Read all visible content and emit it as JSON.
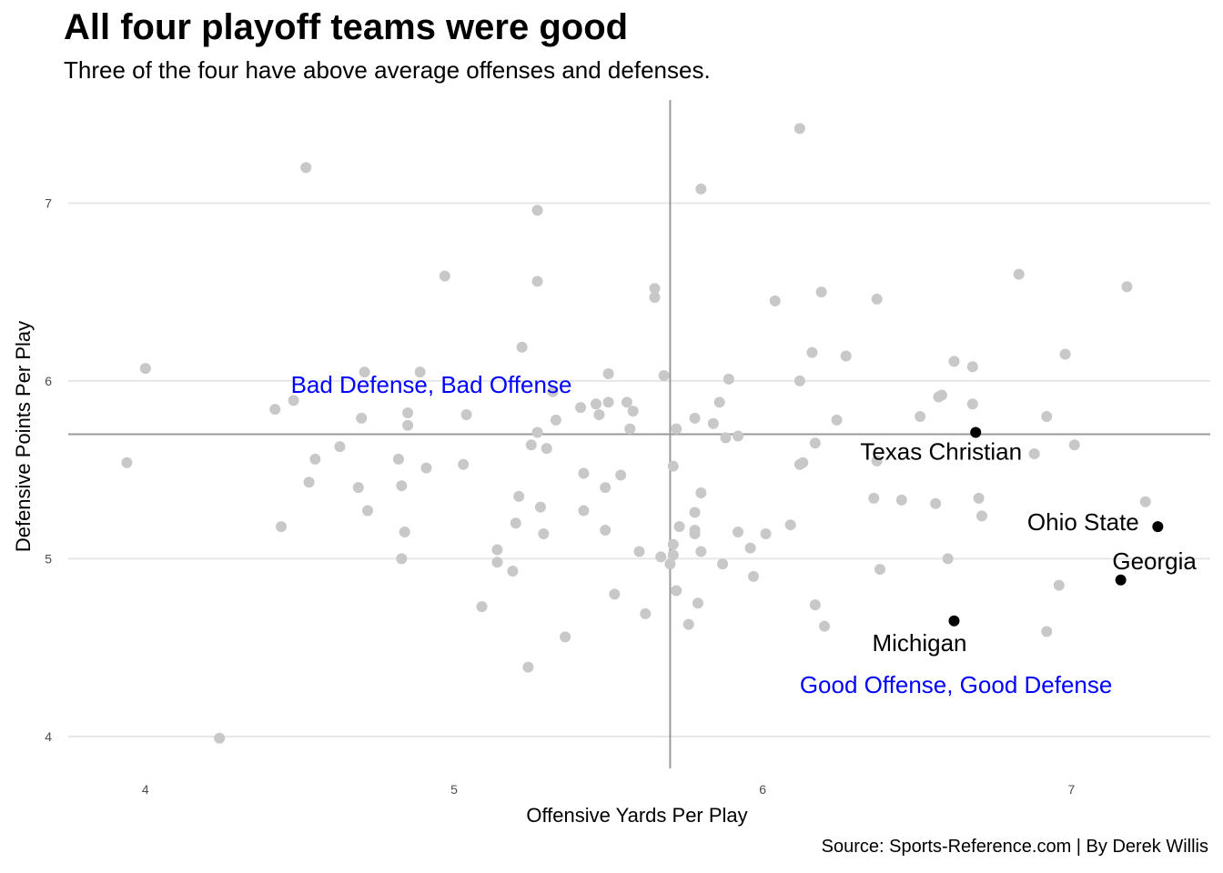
{
  "title": "All four playoff teams were good",
  "subtitle": "Three of the four have above average offenses and defenses.",
  "caption": "Source: Sports-Reference.com | By Derek Willis",
  "chart_data": {
    "type": "scatter",
    "xlabel": "Offensive Yards Per Play",
    "ylabel": "Defensive Points Per Play",
    "xlim": [
      3.75,
      7.45
    ],
    "ylim": [
      3.82,
      7.58
    ],
    "xticks": [
      4,
      5,
      6,
      7
    ],
    "yticks": [
      4,
      5,
      6,
      7
    ],
    "grid": "horizontal major lines",
    "reference_lines": {
      "x": 5.7,
      "y": 5.7
    },
    "colors": {
      "other_teams": "#c8c8c8",
      "playoff_teams": "#000000",
      "quadrant_labels": "#0000ff",
      "reference": "#999999",
      "grid": "#e6e6e6"
    },
    "quadrant_labels": [
      {
        "text": "Bad Defense, Bad Offense",
        "x": 5.0,
        "y": 5.98
      },
      {
        "text": "Good Offense, Good Defense",
        "x": 6.7,
        "y": 4.29
      }
    ],
    "highlighted": [
      {
        "name": "Texas Christian",
        "x": 6.69,
        "y": 5.71
      },
      {
        "name": "Ohio State",
        "x": 7.28,
        "y": 5.18
      },
      {
        "name": "Georgia",
        "x": 7.16,
        "y": 4.88
      },
      {
        "name": "Michigan",
        "x": 6.62,
        "y": 4.65
      }
    ],
    "points": [
      [
        3.94,
        5.54
      ],
      [
        4.0,
        6.07
      ],
      [
        4.24,
        3.99
      ],
      [
        4.42,
        5.84
      ],
      [
        4.44,
        5.18
      ],
      [
        4.48,
        5.89
      ],
      [
        4.52,
        7.2
      ],
      [
        4.53,
        5.43
      ],
      [
        4.55,
        5.56
      ],
      [
        4.63,
        5.63
      ],
      [
        4.69,
        5.4
      ],
      [
        4.7,
        5.79
      ],
      [
        4.71,
        6.05
      ],
      [
        4.72,
        5.27
      ],
      [
        4.82,
        5.56
      ],
      [
        4.83,
        5.41
      ],
      [
        4.83,
        5.0
      ],
      [
        4.84,
        5.15
      ],
      [
        4.85,
        5.82
      ],
      [
        4.85,
        5.75
      ],
      [
        4.89,
        6.05
      ],
      [
        4.91,
        5.51
      ],
      [
        4.97,
        6.59
      ],
      [
        5.03,
        5.53
      ],
      [
        5.04,
        5.81
      ],
      [
        5.09,
        4.73
      ],
      [
        5.14,
        5.05
      ],
      [
        5.14,
        4.98
      ],
      [
        5.19,
        4.93
      ],
      [
        5.2,
        5.2
      ],
      [
        5.21,
        5.35
      ],
      [
        5.22,
        6.19
      ],
      [
        5.24,
        4.39
      ],
      [
        5.25,
        5.64
      ],
      [
        5.27,
        6.96
      ],
      [
        5.27,
        6.56
      ],
      [
        5.27,
        5.71
      ],
      [
        5.28,
        5.29
      ],
      [
        5.29,
        5.14
      ],
      [
        5.3,
        5.62
      ],
      [
        5.32,
        5.94
      ],
      [
        5.33,
        5.78
      ],
      [
        5.36,
        4.56
      ],
      [
        5.41,
        5.85
      ],
      [
        5.42,
        5.48
      ],
      [
        5.42,
        5.27
      ],
      [
        5.46,
        5.87
      ],
      [
        5.47,
        5.81
      ],
      [
        5.49,
        5.4
      ],
      [
        5.49,
        5.16
      ],
      [
        5.5,
        6.04
      ],
      [
        5.5,
        5.88
      ],
      [
        5.52,
        4.8
      ],
      [
        5.54,
        5.47
      ],
      [
        5.56,
        5.88
      ],
      [
        5.57,
        5.73
      ],
      [
        5.58,
        5.83
      ],
      [
        5.6,
        5.04
      ],
      [
        5.62,
        4.69
      ],
      [
        5.65,
        6.52
      ],
      [
        5.65,
        6.47
      ],
      [
        5.67,
        5.01
      ],
      [
        5.68,
        6.03
      ],
      [
        5.7,
        4.97
      ],
      [
        5.71,
        5.52
      ],
      [
        5.71,
        5.08
      ],
      [
        5.71,
        5.02
      ],
      [
        5.72,
        5.73
      ],
      [
        5.72,
        4.82
      ],
      [
        5.73,
        5.18
      ],
      [
        5.76,
        4.63
      ],
      [
        5.78,
        5.79
      ],
      [
        5.78,
        5.26
      ],
      [
        5.78,
        5.16
      ],
      [
        5.78,
        5.14
      ],
      [
        5.79,
        4.75
      ],
      [
        5.8,
        7.08
      ],
      [
        5.8,
        5.37
      ],
      [
        5.8,
        5.04
      ],
      [
        5.84,
        5.76
      ],
      [
        5.86,
        5.88
      ],
      [
        5.87,
        4.97
      ],
      [
        5.88,
        5.68
      ],
      [
        5.89,
        6.01
      ],
      [
        5.92,
        5.69
      ],
      [
        5.92,
        5.15
      ],
      [
        5.96,
        5.06
      ],
      [
        5.97,
        4.9
      ],
      [
        6.01,
        5.14
      ],
      [
        6.04,
        6.45
      ],
      [
        6.09,
        5.19
      ],
      [
        6.12,
        7.42
      ],
      [
        6.12,
        6.0
      ],
      [
        6.12,
        5.53
      ],
      [
        6.13,
        5.54
      ],
      [
        6.16,
        6.16
      ],
      [
        6.17,
        5.65
      ],
      [
        6.17,
        4.74
      ],
      [
        6.19,
        6.5
      ],
      [
        6.2,
        4.62
      ],
      [
        6.24,
        5.78
      ],
      [
        6.27,
        6.14
      ],
      [
        6.36,
        5.34
      ],
      [
        6.37,
        6.46
      ],
      [
        6.37,
        5.55
      ],
      [
        6.38,
        4.94
      ],
      [
        6.45,
        5.33
      ],
      [
        6.51,
        5.8
      ],
      [
        6.56,
        5.31
      ],
      [
        6.57,
        5.91
      ],
      [
        6.58,
        5.92
      ],
      [
        6.6,
        5.0
      ],
      [
        6.62,
        6.11
      ],
      [
        6.68,
        6.08
      ],
      [
        6.68,
        5.87
      ],
      [
        6.7,
        5.34
      ],
      [
        6.71,
        5.24
      ],
      [
        6.83,
        6.6
      ],
      [
        6.88,
        5.59
      ],
      [
        6.92,
        5.8
      ],
      [
        6.92,
        4.59
      ],
      [
        6.96,
        4.85
      ],
      [
        6.98,
        6.15
      ],
      [
        7.01,
        5.64
      ],
      [
        7.18,
        6.53
      ],
      [
        7.24,
        5.32
      ]
    ]
  }
}
